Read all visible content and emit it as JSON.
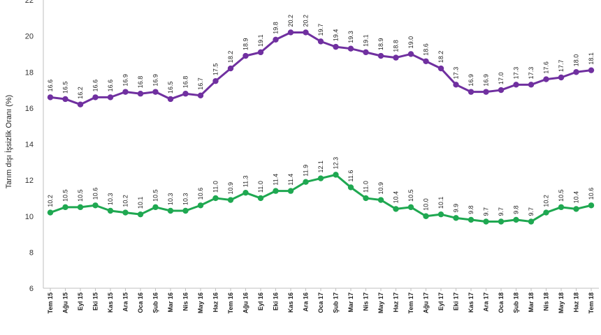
{
  "chart_data": {
    "type": "line",
    "title": "",
    "xlabel": "",
    "ylabel": "Tarım dışı İşsizlik Oranı (%)",
    "ylim": [
      6,
      22
    ],
    "yticks": [
      6,
      8,
      10,
      12,
      14,
      16,
      18,
      20,
      22
    ],
    "grid": false,
    "legend": "none",
    "categories": [
      "Tem 15",
      "Ağu 15",
      "Eyl 15",
      "Eki 15",
      "Kas 15",
      "Ara 15",
      "Oca 16",
      "Şub 16",
      "Mar 16",
      "Nis 16",
      "May 16",
      "Haz 16",
      "Tem 16",
      "Ağu 16",
      "Eyl 16",
      "Eki 16",
      "Kas 16",
      "Ara 16",
      "Oca 17",
      "Şub 17",
      "Mar 17",
      "Nis 17",
      "May 17",
      "Haz 17",
      "Tem 17",
      "Ağu 17",
      "Eyl 17",
      "Eki 17",
      "Kas 17",
      "Ara 17",
      "Oca 18",
      "Şub 18",
      "Mar 18",
      "Nis 18",
      "May 18",
      "Haz 18",
      "Tem 18"
    ],
    "series": [
      {
        "color": "#7030a0",
        "values": [
          16.6,
          16.5,
          16.2,
          16.6,
          16.6,
          16.9,
          16.8,
          16.9,
          16.5,
          16.8,
          16.7,
          17.5,
          18.2,
          18.9,
          19.1,
          19.8,
          20.2,
          20.2,
          19.7,
          19.4,
          19.3,
          19.1,
          18.9,
          18.8,
          19.0,
          18.6,
          18.2,
          17.3,
          16.9,
          16.9,
          17.0,
          17.3,
          17.3,
          17.6,
          17.7,
          18.0,
          18.1
        ]
      },
      {
        "color": "#1fa851",
        "values": [
          10.2,
          10.5,
          10.5,
          10.6,
          10.3,
          10.2,
          10.1,
          10.5,
          10.3,
          10.3,
          10.6,
          11.0,
          10.9,
          11.3,
          11.0,
          11.4,
          11.4,
          11.9,
          12.1,
          12.3,
          11.6,
          11.0,
          10.9,
          10.4,
          10.5,
          10.0,
          10.1,
          9.9,
          9.8,
          9.7,
          9.7,
          9.8,
          9.7,
          10.2,
          10.5,
          10.4,
          10.6
        ]
      }
    ]
  }
}
